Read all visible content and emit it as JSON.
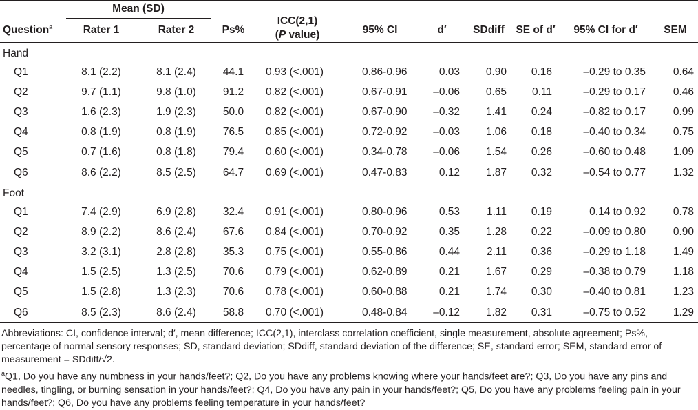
{
  "header": {
    "mean_group": "Mean (SD)",
    "question": "Question",
    "question_sup": "a",
    "rater1": "Rater 1",
    "rater2": "Rater 2",
    "ps": "Ps%",
    "icc_line1": "ICC(2,1)",
    "icc_line2_italic": "P",
    "icc_line2_rest": " value)",
    "icc_line2_open": "(",
    "ci95": "95% CI",
    "d": "d′",
    "sddiff": "SDdiff",
    "se_d": "SE of d′",
    "ci_d": "95% CI for d′",
    "sem": "SEM"
  },
  "sections": [
    {
      "label": "Hand",
      "rows": [
        {
          "q": "Q1",
          "m1": "8.1 (2.2)",
          "m2": "8.1 (2.4)",
          "ps": "44.1",
          "icc": "0.93 (<.001)",
          "ci": "0.86-0.96",
          "d": "0.03",
          "sdd": "0.90",
          "se": "0.16",
          "cid": "–0.29 to 0.35",
          "sem": "0.64"
        },
        {
          "q": "Q2",
          "m1": "9.7 (1.1)",
          "m2": "9.8 (1.0)",
          "ps": "91.2",
          "icc": "0.82 (<.001)",
          "ci": "0.67-0.91",
          "d": "–0.06",
          "sdd": "0.65",
          "se": "0.11",
          "cid": "–0.29 to 0.17",
          "sem": "0.46"
        },
        {
          "q": "Q3",
          "m1": "1.6 (2.3)",
          "m2": "1.9 (2.3)",
          "ps": "50.0",
          "icc": "0.82 (<.001)",
          "ci": "0.67-0.90",
          "d": "–0.32",
          "sdd": "1.41",
          "se": "0.24",
          "cid": "–0.82 to 0.17",
          "sem": "0.99"
        },
        {
          "q": "Q4",
          "m1": "0.8 (1.9)",
          "m2": "0.8 (1.9)",
          "ps": "76.5",
          "icc": "0.85 (<.001)",
          "ci": "0.72-0.92",
          "d": "–0.03",
          "sdd": "1.06",
          "se": "0.18",
          "cid": "–0.40 to 0.34",
          "sem": "0.75"
        },
        {
          "q": "Q5",
          "m1": "0.7 (1.6)",
          "m2": "0.8 (1.8)",
          "ps": "79.4",
          "icc": "0.60 (<.001)",
          "ci": "0.34-0.78",
          "d": "–0.06",
          "sdd": "1.54",
          "se": "0.26",
          "cid": "–0.60 to 0.48",
          "sem": "1.09"
        },
        {
          "q": "Q6",
          "m1": "8.6 (2.2)",
          "m2": "8.5 (2.5)",
          "ps": "64.7",
          "icc": "0.69 (<.001)",
          "ci": "0.47-0.83",
          "d": "0.12",
          "sdd": "1.87",
          "se": "0.32",
          "cid": "–0.54 to 0.77",
          "sem": "1.32"
        }
      ]
    },
    {
      "label": "Foot",
      "rows": [
        {
          "q": "Q1",
          "m1": "7.4 (2.9)",
          "m2": "6.9 (2.8)",
          "ps": "32.4",
          "icc": "0.91 (<.001)",
          "ci": "0.80-0.96",
          "d": "0.53",
          "sdd": "1.11",
          "se": "0.19",
          "cid": "0.14 to 0.92",
          "sem": "0.78"
        },
        {
          "q": "Q2",
          "m1": "8.9 (2.2)",
          "m2": "8.6 (2.4)",
          "ps": "67.6",
          "icc": "0.84 (<.001)",
          "ci": "0.70-0.92",
          "d": "0.35",
          "sdd": "1.28",
          "se": "0.22",
          "cid": "–0.09 to 0.80",
          "sem": "0.90"
        },
        {
          "q": "Q3",
          "m1": "3.2 (3.1)",
          "m2": "2.8 (2.8)",
          "ps": "35.3",
          "icc": "0.75 (<.001)",
          "ci": "0.55-0.86",
          "d": "0.44",
          "sdd": "2.11",
          "se": "0.36",
          "cid": "–0.29 to 1.18",
          "sem": "1.49"
        },
        {
          "q": "Q4",
          "m1": "1.5 (2.5)",
          "m2": "1.3 (2.5)",
          "ps": "70.6",
          "icc": "0.79 (<.001)",
          "ci": "0.62-0.89",
          "d": "0.21",
          "sdd": "1.67",
          "se": "0.29",
          "cid": "–0.38 to 0.79",
          "sem": "1.18"
        },
        {
          "q": "Q5",
          "m1": "1.5 (2.8)",
          "m2": "1.3 (2.3)",
          "ps": "70.6",
          "icc": "0.78 (<.001)",
          "ci": "0.60-0.88",
          "d": "0.21",
          "sdd": "1.74",
          "se": "0.30",
          "cid": "–0.40 to 0.81",
          "sem": "1.23"
        },
        {
          "q": "Q6",
          "m1": "8.5 (2.3)",
          "m2": "8.6 (2.4)",
          "ps": "58.8",
          "icc": "0.70 (<.001)",
          "ci": "0.48-0.84",
          "d": "–0.12",
          "sdd": "1.82",
          "se": "0.31",
          "cid": "–0.75 to 0.52",
          "sem": "1.29"
        }
      ]
    }
  ],
  "notes": {
    "abbreviations": "Abbreviations: CI, confidence interval; d′, mean difference; ICC(2,1), interclass correlation coefficient, single measurement, absolute agreement; Ps%, percentage of normal sensory responses; SD, standard deviation; SDdiff, standard deviation of the difference; SE, standard error; SEM, standard error of measurement = SDdiff/√2.",
    "footnote_mark": "a",
    "footnote": "Q1, Do you have any numbness in your hands/feet?; Q2, Do you have any problems knowing where your hands/feet are?; Q3, Do you have any pins and needles, tingling, or burning sensation in your hands/feet?; Q4, Do you have any pain in your hands/feet?; Q5, Do you have any problems feeling pain in your hands/feet?; Q6, Do you have any problems feeling temperature in your hands/feet?"
  }
}
